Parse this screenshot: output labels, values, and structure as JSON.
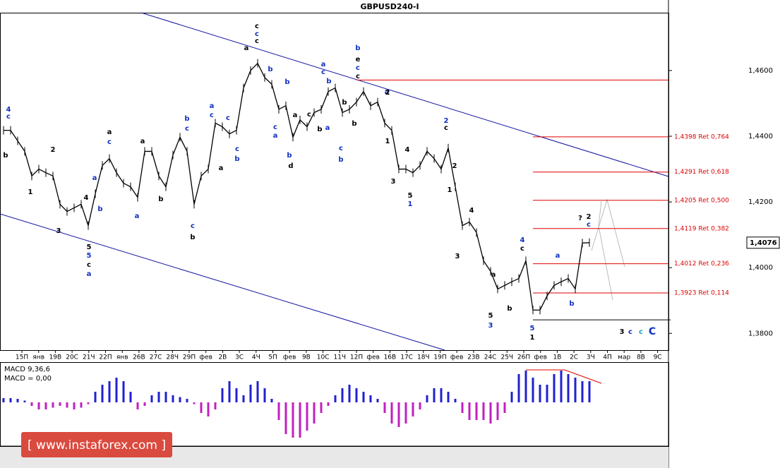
{
  "chart_data": {
    "type": "line",
    "title": "GBPUSD240-I",
    "color": "#000000",
    "values": [
      1.4418,
      1.4418,
      1.4386,
      1.4354,
      1.4279,
      1.43,
      1.4289,
      1.4279,
      1.4193,
      1.4171,
      1.4182,
      1.4193,
      1.4128,
      1.4225,
      1.4311,
      1.4332,
      1.4289,
      1.4257,
      1.4246,
      1.4214,
      1.4354,
      1.4354,
      1.4279,
      1.4246,
      1.4343,
      1.4397,
      1.4354,
      1.4193,
      1.4279,
      1.43,
      1.444,
      1.4429,
      1.4407,
      1.4418,
      1.4547,
      1.46,
      1.4622,
      1.4579,
      1.4558,
      1.4482,
      1.4493,
      1.4397,
      1.445,
      1.4429,
      1.4472,
      1.4482,
      1.4536,
      1.4547,
      1.4472,
      1.4482,
      1.4504,
      1.4536,
      1.4493,
      1.4504,
      1.444,
      1.4418,
      1.43,
      1.43,
      1.4289,
      1.4311,
      1.4354,
      1.4332,
      1.43,
      1.4364,
      1.4246,
      1.4128,
      1.4139,
      1.4107,
      1.4021,
      1.3989,
      1.3935,
      1.3946,
      1.3957,
      1.3967,
      1.4021,
      1.3871,
      1.3871,
      1.3914,
      1.3946,
      1.3957,
      1.3967,
      1.3935,
      1.4075,
      1.4076
    ],
    "ylim": [
      1.3749,
      1.4776
    ],
    "yticks": [
      {
        "value": 1.38,
        "label": "1,3800"
      },
      {
        "value": 1.4,
        "label": "1,4000"
      },
      {
        "value": 1.42,
        "label": "1,4200"
      },
      {
        "value": 1.44,
        "label": "1,4400"
      },
      {
        "value": 1.46,
        "label": "1,4600"
      }
    ],
    "current_price": {
      "value": 1.4076,
      "label": "1,4076"
    },
    "x_labels": [
      "15П",
      "янв",
      "19В",
      "20С",
      "21Ч",
      "22П",
      "янв",
      "26В",
      "27С",
      "28Ч",
      "29П",
      "фев",
      "2В",
      "3С",
      "4Ч",
      "5П",
      "фев",
      "9В",
      "10С",
      "11Ч",
      "12П",
      "фев",
      "16В",
      "17С",
      "18Ч",
      "19П",
      "фев",
      "23В",
      "24С",
      "25Ч",
      "26П",
      "фев",
      "1В",
      "2С",
      "3Ч",
      "4П",
      "мар",
      "8В",
      "9С"
    ],
    "resistance_level": 1.4571,
    "support_level": 1.3841,
    "fib_levels": [
      {
        "value": 1.4398,
        "label": "1,4398 Ret 0,764"
      },
      {
        "value": 1.4291,
        "label": "1,4291 Ret 0,618"
      },
      {
        "value": 1.4205,
        "label": "1,4205 Ret 0,500"
      },
      {
        "value": 1.4119,
        "label": "1,4119 Ret 0,382"
      },
      {
        "value": 1.4012,
        "label": "1,4012 Ret 0,236"
      },
      {
        "value": 1.3923,
        "label": "1,3923 Ret 0,114"
      }
    ],
    "wave_labels": [
      "4",
      "c",
      "b",
      "1",
      "2",
      "3",
      "4",
      "5",
      "5",
      "c",
      "a",
      "a",
      "b",
      "a",
      "c",
      "a",
      "a",
      "b",
      "b",
      "c",
      "c",
      "b",
      "a",
      "c",
      "a",
      "c",
      "c",
      "b",
      "c",
      "c",
      "c",
      "a",
      "b",
      "b",
      "c",
      "a",
      "b",
      "d",
      "a",
      "c",
      "a",
      "c",
      "b",
      "b",
      "a",
      "b",
      "c",
      "b",
      "b",
      "b",
      "e",
      "c",
      "c",
      "a",
      "2",
      "1",
      "3",
      "4",
      "5",
      "1",
      "2",
      "c",
      "2",
      "1",
      "4",
      "3",
      "a",
      "5",
      "3",
      "b",
      "4",
      "c",
      "5",
      "1",
      "a",
      "b",
      "?",
      "2",
      "c",
      "3",
      "c",
      "c",
      "C"
    ],
    "macd_title": "MACD 9,36,6",
    "macd_value_label": "MACD = 0,00",
    "macd_ylim": [
      -1.2,
      1
    ],
    "macd_values": [
      0.12,
      0.12,
      0.1,
      0.05,
      -0.1,
      -0.2,
      -0.2,
      -0.15,
      -0.1,
      -0.15,
      -0.2,
      -0.15,
      -0.05,
      0.3,
      0.5,
      0.6,
      0.7,
      0.6,
      0.3,
      -0.2,
      -0.1,
      0.2,
      0.3,
      0.3,
      0.2,
      0.15,
      0.1,
      -0.05,
      -0.3,
      -0.4,
      -0.2,
      0.4,
      0.6,
      0.4,
      0.2,
      0.5,
      0.6,
      0.4,
      0.1,
      -0.5,
      -0.9,
      -1.0,
      -1.0,
      -0.8,
      -0.6,
      -0.3,
      -0.1,
      0.2,
      0.4,
      0.5,
      0.4,
      0.3,
      0.2,
      0.1,
      -0.3,
      -0.6,
      -0.7,
      -0.6,
      -0.4,
      -0.2,
      0.2,
      0.4,
      0.4,
      0.3,
      0.1,
      -0.3,
      -0.5,
      -0.5,
      -0.5,
      -0.6,
      -0.5,
      -0.3,
      0.3,
      0.8,
      0.9,
      0.7,
      0.5,
      0.5,
      0.8,
      0.9,
      0.8,
      0.7,
      0.6,
      0.6
    ],
    "watermark": "[ www.instaforex.com ]"
  }
}
